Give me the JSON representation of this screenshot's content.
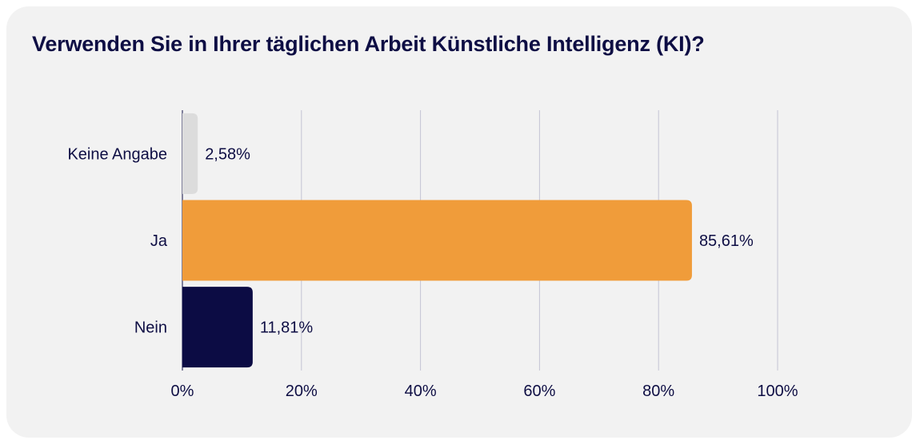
{
  "chart_data": {
    "type": "bar",
    "orientation": "horizontal",
    "title": "Verwenden Sie in Ihrer täglichen Arbeit Künstliche Intelligenz (KI)?",
    "categories": [
      "Keine Angabe",
      "Ja",
      "Nein"
    ],
    "values": [
      2.58,
      85.61,
      11.81
    ],
    "value_labels": [
      "2,58%",
      "85,61%",
      "11,81%"
    ],
    "colors": [
      "#dcdcdc",
      "#f09c3a",
      "#0c0c44"
    ],
    "xlim": [
      0,
      100
    ],
    "xticks": [
      0,
      20,
      40,
      60,
      80,
      100
    ],
    "xtick_labels": [
      "0%",
      "20%",
      "40%",
      "60%",
      "80%",
      "100%"
    ],
    "grid": true,
    "xlabel": "",
    "ylabel": ""
  }
}
